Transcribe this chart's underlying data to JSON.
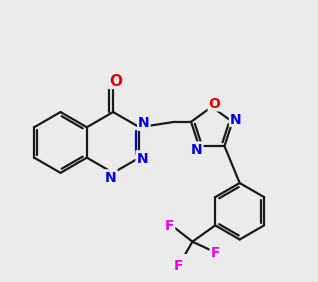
{
  "bg_color": "#ebebeb",
  "bond_color": "#1a1a1a",
  "N_color": "#0000ee",
  "O_color": "#ee0000",
  "F_color": "#ee00ee",
  "line_width": 1.6,
  "dbo": 0.055,
  "font_size": 9.5
}
